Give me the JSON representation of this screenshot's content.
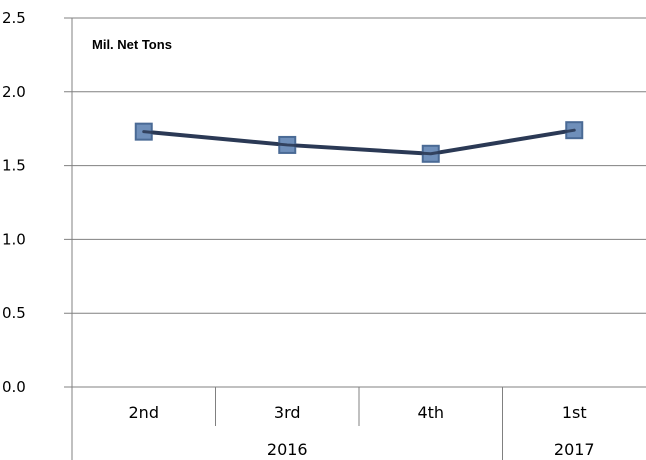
{
  "chart_data": {
    "type": "line",
    "categories": [
      "2nd",
      "3rd",
      "4th",
      "1st"
    ],
    "groups": [
      {
        "label": "2016",
        "span": 3
      },
      {
        "label": "2017",
        "span": 1
      }
    ],
    "series": [
      {
        "values": [
          1.73,
          1.64,
          1.58,
          1.74
        ]
      }
    ],
    "unit_label": "Mil. Net Tons",
    "ylim": [
      0,
      2.5
    ],
    "yticks": [
      "0.0",
      "0.5",
      "1.0",
      "1.5",
      "2.0",
      "2.5"
    ],
    "ytick_values": [
      0,
      0.5,
      1.0,
      1.5,
      2.0,
      2.5
    ],
    "grid": true,
    "colors": {
      "line": "#2b3a55",
      "marker_fill": "#6f8fba",
      "marker_stroke": "#4a6a95",
      "grid": "#808080"
    }
  }
}
